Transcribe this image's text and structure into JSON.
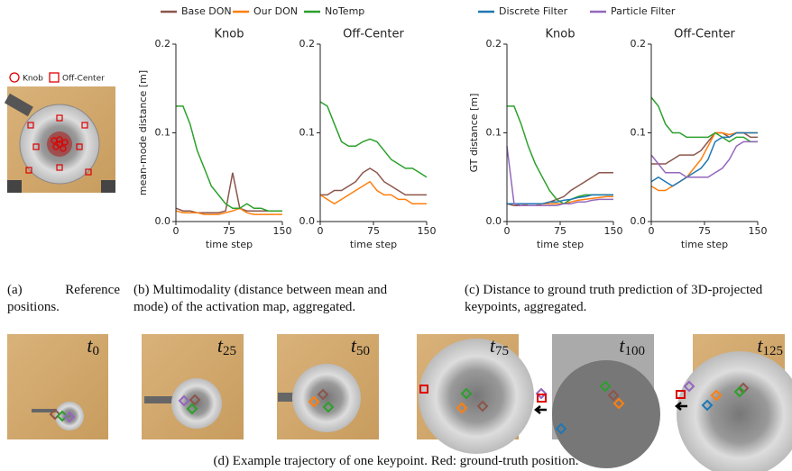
{
  "reference": {
    "legend": [
      "Knob",
      "Off-Center"
    ]
  },
  "chart_data": [
    {
      "type": "line",
      "title": "Knob",
      "ylabel": "mean-mode distance [m]",
      "xlabel": "time step",
      "x": [
        0,
        10,
        20,
        30,
        40,
        50,
        60,
        70,
        80,
        90,
        100,
        110,
        120,
        130,
        140,
        150
      ],
      "xlim": [
        0,
        150
      ],
      "ylim": [
        0,
        0.2
      ],
      "xticks": [
        0,
        75,
        150
      ],
      "yticks": [
        {
          "value": 0,
          "label": "0.0"
        },
        0.1,
        0.2
      ],
      "series": [
        {
          "name": "Base DON",
          "color": "#8c564b",
          "values": [
            0.015,
            0.012,
            0.012,
            0.01,
            0.01,
            0.01,
            0.01,
            0.012,
            0.055,
            0.015,
            0.012,
            0.012,
            0.012,
            0.012,
            0.012,
            0.012
          ]
        },
        {
          "name": "Our DON",
          "color": "#ff7f0e",
          "values": [
            0.012,
            0.01,
            0.01,
            0.01,
            0.008,
            0.008,
            0.008,
            0.01,
            0.012,
            0.015,
            0.01,
            0.008,
            0.008,
            0.008,
            0.008,
            0.008
          ]
        },
        {
          "name": "NoTemp",
          "color": "#2ca02c",
          "values": [
            0.13,
            0.13,
            0.11,
            0.08,
            0.06,
            0.04,
            0.03,
            0.02,
            0.015,
            0.015,
            0.02,
            0.015,
            0.015,
            0.012,
            0.012,
            0.012
          ]
        }
      ]
    },
    {
      "type": "line",
      "title": "Off-Center",
      "xlabel": "time step",
      "x": [
        0,
        10,
        20,
        30,
        40,
        50,
        60,
        70,
        80,
        90,
        100,
        110,
        120,
        130,
        140,
        150
      ],
      "xlim": [
        0,
        150
      ],
      "ylim": [
        0,
        0.2
      ],
      "xticks": [
        0,
        75,
        150
      ],
      "yticks": [
        {
          "value": 0,
          "label": "0.0"
        },
        0.1,
        0.2
      ],
      "series": [
        {
          "name": "Base DON",
          "color": "#8c564b",
          "values": [
            0.03,
            0.03,
            0.035,
            0.035,
            0.04,
            0.045,
            0.055,
            0.06,
            0.055,
            0.045,
            0.04,
            0.035,
            0.03,
            0.03,
            0.03,
            0.03
          ]
        },
        {
          "name": "Our DON",
          "color": "#ff7f0e",
          "values": [
            0.03,
            0.025,
            0.02,
            0.025,
            0.03,
            0.035,
            0.04,
            0.045,
            0.035,
            0.03,
            0.03,
            0.025,
            0.025,
            0.02,
            0.02,
            0.02
          ]
        },
        {
          "name": "NoTemp",
          "color": "#2ca02c",
          "values": [
            0.135,
            0.13,
            0.11,
            0.09,
            0.085,
            0.085,
            0.09,
            0.093,
            0.09,
            0.08,
            0.07,
            0.065,
            0.06,
            0.06,
            0.055,
            0.05
          ]
        }
      ]
    },
    {
      "type": "line",
      "title": "Knob",
      "ylabel": "GT distance [m]",
      "xlabel": "time step",
      "x": [
        0,
        10,
        20,
        30,
        40,
        50,
        60,
        70,
        80,
        90,
        100,
        110,
        120,
        130,
        140,
        150
      ],
      "xlim": [
        0,
        150
      ],
      "ylim": [
        0,
        0.2
      ],
      "xticks": [
        0,
        75,
        150
      ],
      "yticks": [
        {
          "value": 0,
          "label": "0.0"
        },
        0.1,
        0.2
      ],
      "series": [
        {
          "name": "Base DON",
          "color": "#8c564b",
          "values": [
            0.02,
            0.018,
            0.018,
            0.02,
            0.02,
            0.02,
            0.022,
            0.025,
            0.028,
            0.035,
            0.04,
            0.045,
            0.05,
            0.055,
            0.055,
            0.055
          ]
        },
        {
          "name": "Our DON",
          "color": "#ff7f0e",
          "values": [
            0.02,
            0.02,
            0.02,
            0.018,
            0.018,
            0.02,
            0.02,
            0.02,
            0.02,
            0.022,
            0.024,
            0.025,
            0.026,
            0.027,
            0.028,
            0.028
          ]
        },
        {
          "name": "NoTemp",
          "color": "#2ca02c",
          "values": [
            0.13,
            0.13,
            0.11,
            0.085,
            0.065,
            0.05,
            0.035,
            0.025,
            0.02,
            0.025,
            0.028,
            0.03,
            0.03,
            0.03,
            0.03,
            0.03
          ]
        },
        {
          "name": "Discrete Filter",
          "color": "#1f77b4",
          "values": [
            0.02,
            0.02,
            0.02,
            0.02,
            0.02,
            0.02,
            0.022,
            0.022,
            0.024,
            0.025,
            0.027,
            0.028,
            0.03,
            0.03,
            0.03,
            0.03
          ]
        },
        {
          "name": "Particle Filter",
          "color": "#9467bd",
          "values": [
            0.085,
            0.02,
            0.018,
            0.018,
            0.018,
            0.018,
            0.018,
            0.018,
            0.02,
            0.02,
            0.022,
            0.022,
            0.024,
            0.025,
            0.025,
            0.025
          ]
        }
      ]
    },
    {
      "type": "line",
      "title": "Off-Center",
      "xlabel": "time step",
      "x": [
        0,
        10,
        20,
        30,
        40,
        50,
        60,
        70,
        80,
        90,
        100,
        110,
        120,
        130,
        140,
        150
      ],
      "xlim": [
        0,
        150
      ],
      "ylim": [
        0,
        0.2
      ],
      "xticks": [
        0,
        75,
        150
      ],
      "yticks": [
        {
          "value": 0,
          "label": "0.0"
        },
        0.1,
        0.2
      ],
      "series": [
        {
          "name": "Base DON",
          "color": "#8c564b",
          "values": [
            0.065,
            0.065,
            0.065,
            0.07,
            0.075,
            0.075,
            0.075,
            0.08,
            0.09,
            0.1,
            0.1,
            0.095,
            0.1,
            0.1,
            0.095,
            0.095
          ]
        },
        {
          "name": "Our DON",
          "color": "#ff7f0e",
          "values": [
            0.04,
            0.035,
            0.035,
            0.04,
            0.045,
            0.05,
            0.06,
            0.07,
            0.085,
            0.1,
            0.1,
            0.098,
            0.1,
            0.1,
            0.1,
            0.1
          ]
        },
        {
          "name": "NoTemp",
          "color": "#2ca02c",
          "values": [
            0.14,
            0.13,
            0.11,
            0.1,
            0.1,
            0.095,
            0.095,
            0.095,
            0.095,
            0.1,
            0.095,
            0.09,
            0.095,
            0.095,
            0.09,
            0.09
          ]
        },
        {
          "name": "Discrete Filter",
          "color": "#1f77b4",
          "values": [
            0.045,
            0.05,
            0.045,
            0.04,
            0.045,
            0.05,
            0.055,
            0.06,
            0.07,
            0.09,
            0.095,
            0.095,
            0.1,
            0.1,
            0.1,
            0.1
          ]
        },
        {
          "name": "Particle Filter",
          "color": "#9467bd",
          "values": [
            0.075,
            0.065,
            0.055,
            0.055,
            0.055,
            0.05,
            0.05,
            0.05,
            0.05,
            0.055,
            0.06,
            0.07,
            0.085,
            0.09,
            0.09,
            0.09
          ]
        }
      ]
    }
  ],
  "captions": {
    "a": "(a) Reference positions.",
    "b": "(b) Multimodality (distance between mean and mode) of the activation map, aggregated.",
    "c": "(c) Distance to ground truth prediction of 3D-projected keypoints, aggregated.",
    "d": "(d) Example trajectory of one keypoint. Red: ground-truth position."
  },
  "frames": [
    {
      "var": "t",
      "sub": "0"
    },
    {
      "var": "t",
      "sub": "25"
    },
    {
      "var": "t",
      "sub": "50"
    },
    {
      "var": "t",
      "sub": "75"
    },
    {
      "var": "t",
      "sub": "100"
    },
    {
      "var": "t",
      "sub": "125"
    }
  ]
}
